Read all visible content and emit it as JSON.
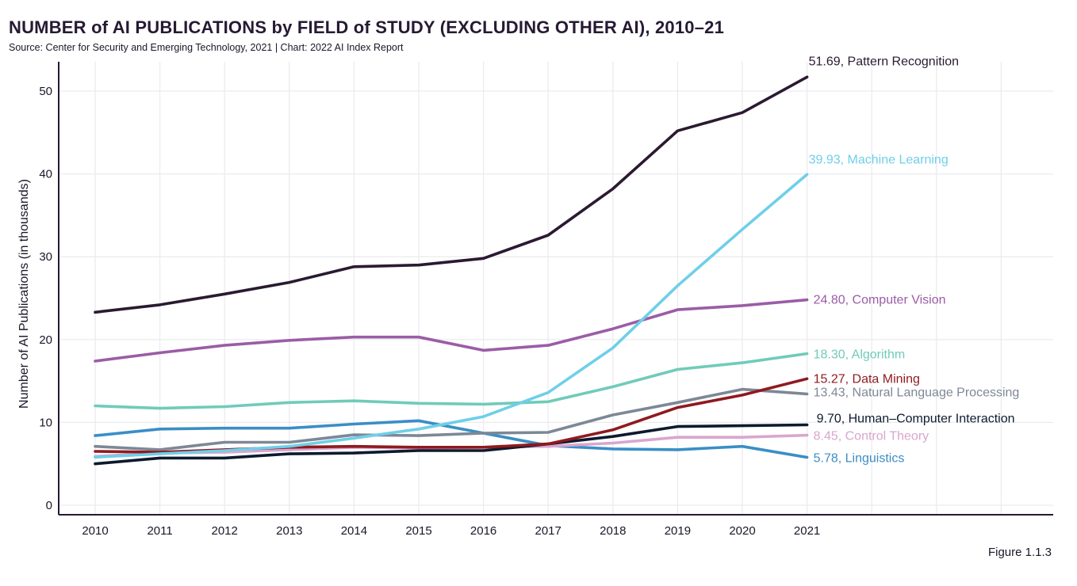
{
  "title": "NUMBER of AI PUBLICATIONS by FIELD of STUDY (EXCLUDING OTHER AI), 2010–21",
  "subtitle": "Source: Center for Security and Emerging Technology, 2021 | Chart: 2022 AI Index Report",
  "figure_label": "Figure 1.1.3",
  "chart_data": {
    "type": "line",
    "title": "NUMBER of AI PUBLICATIONS by FIELD of STUDY (EXCLUDING OTHER AI), 2010–21",
    "xlabel": "",
    "ylabel": "Number of AI Publications (in thousands)",
    "categories": [
      "2010",
      "2011",
      "2012",
      "2013",
      "2014",
      "2015",
      "2016",
      "2017",
      "2018",
      "2019",
      "2020",
      "2021"
    ],
    "xlim": [
      2010,
      2024
    ],
    "ylim": [
      -1,
      54
    ],
    "yticks": [
      0,
      10,
      20,
      30,
      40,
      50
    ],
    "grid": true,
    "series": [
      {
        "name": "Pattern Recognition",
        "label": "51.69, Pattern Recognition",
        "color": "#2a1a31",
        "values": [
          23.3,
          24.2,
          25.5,
          26.9,
          28.8,
          29.0,
          29.8,
          32.6,
          38.2,
          45.2,
          47.4,
          51.69
        ]
      },
      {
        "name": "Machine Learning",
        "label": "39.93, Machine Learning",
        "color": "#6fcfe8",
        "values": [
          5.8,
          6.2,
          6.6,
          7.1,
          8.1,
          9.2,
          10.7,
          13.6,
          19.0,
          26.5,
          33.3,
          39.93
        ]
      },
      {
        "name": "Computer Vision",
        "label": "24.80, Computer Vision",
        "color": "#9b5ca6",
        "values": [
          17.4,
          18.4,
          19.3,
          19.9,
          20.3,
          20.3,
          18.7,
          19.3,
          21.3,
          23.6,
          24.1,
          24.8
        ]
      },
      {
        "name": "Algorithm",
        "label": "18.30, Algorithm",
        "color": "#70cbb9",
        "values": [
          12.0,
          11.7,
          11.9,
          12.4,
          12.6,
          12.3,
          12.2,
          12.5,
          14.3,
          16.4,
          17.2,
          18.3
        ]
      },
      {
        "name": "Data Mining",
        "label": "15.27, Data Mining",
        "color": "#8f1a1f",
        "values": [
          6.5,
          6.4,
          6.7,
          7.0,
          7.1,
          7.0,
          7.0,
          7.4,
          9.1,
          11.8,
          13.3,
          15.27
        ]
      },
      {
        "name": "Natural Language Processing",
        "label": "13.43, Natural Language Processing",
        "color": "#7d8896",
        "values": [
          7.1,
          6.7,
          7.6,
          7.6,
          8.5,
          8.4,
          8.7,
          8.8,
          10.9,
          12.4,
          14.0,
          13.43
        ]
      },
      {
        "name": "Human–Computer Interaction",
        "label": "9.70, Human–Computer Interaction",
        "color": "#0d1a2e",
        "values": [
          5.0,
          5.7,
          5.7,
          6.2,
          6.3,
          6.6,
          6.6,
          7.4,
          8.3,
          9.5,
          9.6,
          9.7
        ]
      },
      {
        "name": "Control Theory",
        "label": "8.45, Control Theory",
        "color": "#d9a6cf",
        "values": [
          5.9,
          6.3,
          6.4,
          6.7,
          7.0,
          6.9,
          7.0,
          7.1,
          7.5,
          8.2,
          8.2,
          8.45
        ]
      },
      {
        "name": "Linguistics",
        "label": "5.78, Linguistics",
        "color": "#3a8ec6",
        "values": [
          8.4,
          9.2,
          9.3,
          9.3,
          9.8,
          10.2,
          8.7,
          7.2,
          6.8,
          6.7,
          7.1,
          5.78
        ]
      }
    ]
  }
}
